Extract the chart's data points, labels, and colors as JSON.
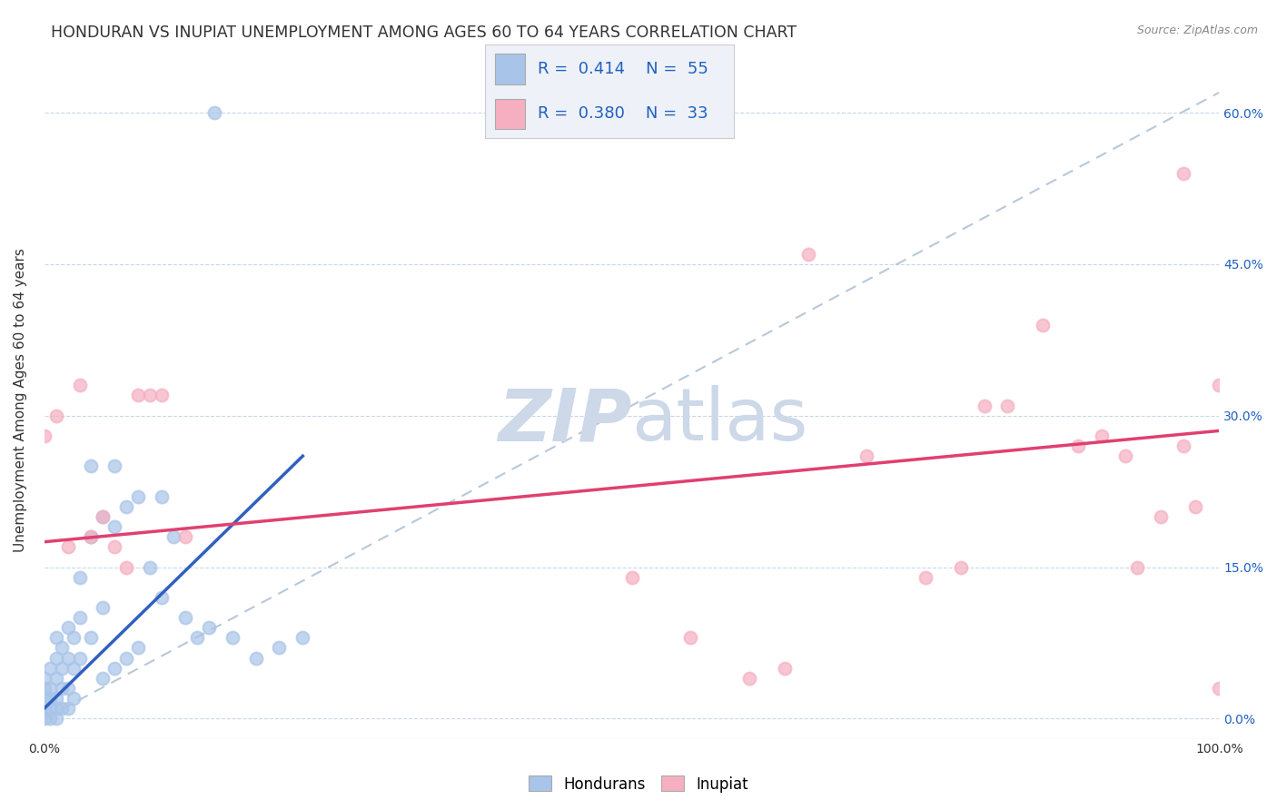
{
  "title": "HONDURAN VS INUPIAT UNEMPLOYMENT AMONG AGES 60 TO 64 YEARS CORRELATION CHART",
  "source": "Source: ZipAtlas.com",
  "ylabel": "Unemployment Among Ages 60 to 64 years",
  "xlim": [
    0,
    1.0
  ],
  "ylim": [
    -0.02,
    0.65
  ],
  "xtick_positions": [
    0.0,
    0.1,
    0.2,
    0.3,
    0.4,
    0.5,
    0.6,
    0.7,
    0.8,
    0.9,
    1.0
  ],
  "xticklabels": [
    "0.0%",
    "",
    "",
    "",
    "",
    "",
    "",
    "",
    "",
    "",
    "100.0%"
  ],
  "ytick_positions": [
    0.0,
    0.15,
    0.3,
    0.45,
    0.6
  ],
  "ytick_labels_right": [
    "0.0%",
    "15.0%",
    "30.0%",
    "45.0%",
    "60.0%"
  ],
  "honduran_color": "#a8c4e8",
  "inupiat_color": "#f5afc0",
  "honduran_trend_color": "#3060c0",
  "inupiat_trend_color": "#e04070",
  "diagonal_color": "#b8c8d8",
  "grid_color": "#c8d8e8",
  "background_color": "#ffffff",
  "legend_box_color": "#eef2f8",
  "legend_text_color": "#2060c0",
  "watermark_color": "#cdd8e8",
  "R_honduran": "0.414",
  "N_honduran": "55",
  "R_inupiat": "0.380",
  "N_inupiat": "33",
  "honduran_scatter_x": [
    0.0,
    0.0,
    0.0,
    0.0,
    0.0,
    0.005,
    0.005,
    0.005,
    0.005,
    0.005,
    0.01,
    0.01,
    0.01,
    0.01,
    0.01,
    0.01,
    0.015,
    0.015,
    0.015,
    0.015,
    0.02,
    0.02,
    0.02,
    0.02,
    0.025,
    0.025,
    0.025,
    0.03,
    0.03,
    0.03,
    0.04,
    0.04,
    0.05,
    0.05,
    0.05,
    0.06,
    0.06,
    0.07,
    0.07,
    0.08,
    0.08,
    0.09,
    0.1,
    0.1,
    0.11,
    0.12,
    0.13,
    0.14,
    0.16,
    0.18,
    0.2,
    0.22,
    0.04,
    0.06,
    0.145
  ],
  "honduran_scatter_y": [
    0.0,
    0.01,
    0.02,
    0.03,
    0.04,
    0.0,
    0.01,
    0.02,
    0.03,
    0.05,
    0.0,
    0.01,
    0.02,
    0.04,
    0.06,
    0.08,
    0.01,
    0.03,
    0.05,
    0.07,
    0.01,
    0.03,
    0.06,
    0.09,
    0.02,
    0.05,
    0.08,
    0.06,
    0.1,
    0.14,
    0.08,
    0.18,
    0.04,
    0.11,
    0.2,
    0.05,
    0.19,
    0.06,
    0.21,
    0.07,
    0.22,
    0.15,
    0.12,
    0.22,
    0.18,
    0.1,
    0.08,
    0.09,
    0.08,
    0.06,
    0.07,
    0.08,
    0.25,
    0.25,
    0.6
  ],
  "inupiat_scatter_x": [
    0.0,
    0.01,
    0.02,
    0.03,
    0.04,
    0.05,
    0.06,
    0.07,
    0.08,
    0.09,
    0.1,
    0.12,
    0.5,
    0.55,
    0.6,
    0.63,
    0.65,
    0.7,
    0.75,
    0.78,
    0.8,
    0.82,
    0.85,
    0.88,
    0.9,
    0.92,
    0.93,
    0.95,
    0.97,
    0.97,
    0.98,
    1.0,
    1.0
  ],
  "inupiat_scatter_y": [
    0.28,
    0.3,
    0.17,
    0.33,
    0.18,
    0.2,
    0.17,
    0.15,
    0.32,
    0.32,
    0.32,
    0.18,
    0.14,
    0.08,
    0.04,
    0.05,
    0.46,
    0.26,
    0.14,
    0.15,
    0.31,
    0.31,
    0.39,
    0.27,
    0.28,
    0.26,
    0.15,
    0.2,
    0.54,
    0.27,
    0.21,
    0.33,
    0.03
  ],
  "honduran_trend_x": [
    0.0,
    0.22
  ],
  "honduran_trend_y_start": 0.01,
  "honduran_trend_y_end": 0.26,
  "inupiat_trend_x": [
    0.0,
    1.0
  ],
  "inupiat_trend_y_start": 0.175,
  "inupiat_trend_y_end": 0.285,
  "title_fontsize": 12.5,
  "axis_label_fontsize": 11,
  "tick_fontsize": 10,
  "source_fontsize": 9
}
